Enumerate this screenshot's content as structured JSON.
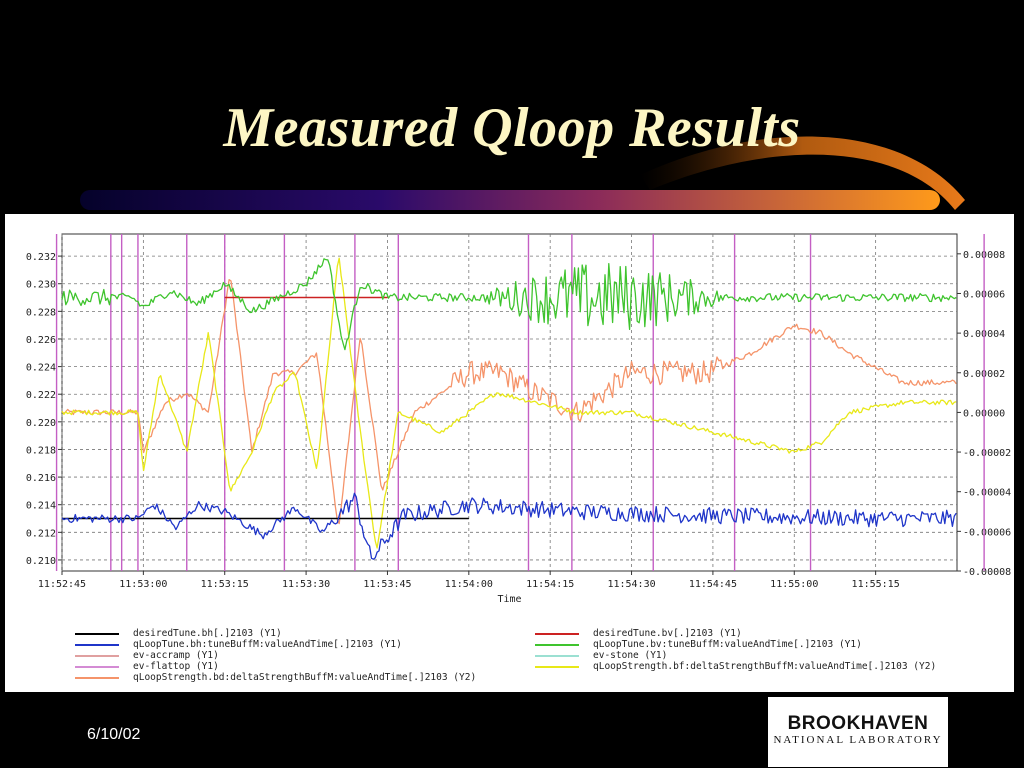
{
  "slide": {
    "title": "Measured Qloop Results",
    "date": "6/10/02",
    "logo_line1": "BROOKHAVEN",
    "logo_line2": "NATIONAL LABORATORY",
    "colors": {
      "background": "#000000",
      "title": "#fdf6c4",
      "bar_start": "#2a0a6a",
      "bar_end": "#ff9a1a"
    }
  },
  "chart_data": {
    "type": "line",
    "xlabel": "Time",
    "x_tick_labels": [
      "11:52:45",
      "11:53:00",
      "11:53:15",
      "11:53:30",
      "11:53:45",
      "11:54:00",
      "11:54:15",
      "11:54:30",
      "11:54:45",
      "11:55:00",
      "11:55:15"
    ],
    "xlim": [
      "11:52:45",
      "11:55:30"
    ],
    "y1_ticks": [
      "0.232",
      "0.230",
      "0.228",
      "0.226",
      "0.224",
      "0.222",
      "0.220",
      "0.218",
      "0.216",
      "0.214",
      "0.212",
      "0.210"
    ],
    "y1lim": [
      0.2092,
      0.2336
    ],
    "y2_ticks": [
      "0.00008",
      "0.00006",
      "0.00004",
      "0.00002",
      "0.00000",
      "-0.00002",
      "-0.00004",
      "-0.00006",
      "-0.00008"
    ],
    "y2lim": [
      -8e-05,
      9e-05
    ],
    "grid": true,
    "event_markers_seconds": [
      -1,
      9,
      11,
      14,
      23,
      30,
      41,
      54,
      62,
      86,
      94,
      109,
      124,
      138,
      170
    ],
    "series": [
      {
        "name": "desiredTune.bh[.]2103 (Y1)",
        "axis": "y1",
        "color": "#000000",
        "x": [
          "11:52:45",
          "11:53:00",
          "11:53:45",
          "11:54:00"
        ],
        "y": [
          0.213,
          0.213,
          0.213,
          0.213
        ]
      },
      {
        "name": "qLoopTune.bh:tuneBuffM:valueAndTime[.]2103 (Y1)",
        "axis": "y1",
        "color": "#1f35c9",
        "x": [
          "11:52:45",
          "11:52:59",
          "11:53:02",
          "11:53:06",
          "11:53:10",
          "11:53:15",
          "11:53:22",
          "11:53:28",
          "11:53:33",
          "11:53:39",
          "11:53:42",
          "11:53:48",
          "11:54:00",
          "11:54:20",
          "11:54:45",
          "11:55:15",
          "11:55:30"
        ],
        "y": [
          0.213,
          0.213,
          0.214,
          0.2123,
          0.214,
          0.2135,
          0.2118,
          0.2138,
          0.212,
          0.2145,
          0.21,
          0.2132,
          0.214,
          0.2135,
          0.2132,
          0.213,
          0.213
        ]
      },
      {
        "name": "ev-accramp (Y1)",
        "axis": "y1",
        "color": "#e0a0a0",
        "x": [],
        "y": []
      },
      {
        "name": "ev-flattop (Y1)",
        "axis": "y1",
        "color": "#d48bd4",
        "x": [],
        "y": []
      },
      {
        "name": "qLoopStrength.bd:deltaStrengthBuffM:valueAndTime[.]2103 (Y2)",
        "axis": "y2",
        "color": "#f5946a",
        "x": [
          "11:52:45",
          "11:52:59",
          "11:53:00",
          "11:53:04",
          "11:53:08",
          "11:53:12",
          "11:53:16",
          "11:53:20",
          "11:53:24",
          "11:53:28",
          "11:53:32",
          "11:53:36",
          "11:53:40",
          "11:53:44",
          "11:53:50",
          "11:54:00",
          "11:54:06",
          "11:54:12",
          "11:54:20",
          "11:54:30",
          "11:54:44",
          "11:54:52",
          "11:55:00",
          "11:55:05",
          "11:55:10",
          "11:55:20",
          "11:55:30"
        ],
        "y": [
          0.0,
          0.0,
          -2e-05,
          5e-06,
          1e-05,
          0.0,
          7e-05,
          -2e-05,
          2e-05,
          2e-05,
          3e-05,
          -6e-05,
          4e-05,
          -4e-05,
          0.0,
          2e-05,
          2e-05,
          1e-05,
          0.0,
          2e-05,
          2e-05,
          3e-05,
          4.4e-05,
          4e-05,
          3e-05,
          1.5e-05,
          1.5e-05
        ]
      },
      {
        "name": "desiredTune.bv[.]2103 (Y1)",
        "axis": "y1",
        "color": "#cc2222",
        "x": [
          "11:53:15",
          "11:53:45"
        ],
        "y": [
          0.229,
          0.229
        ]
      },
      {
        "name": "qLoopTune.bv:tuneBuffM:valueAndTime[.]2103 (Y1)",
        "axis": "y1",
        "color": "#3fc42e",
        "x": [
          "11:52:45",
          "11:52:58",
          "11:53:00",
          "11:53:05",
          "11:53:10",
          "11:53:15",
          "11:53:20",
          "11:53:25",
          "11:53:30",
          "11:53:34",
          "11:53:37",
          "11:53:40",
          "11:53:45",
          "11:54:00",
          "11:54:20",
          "11:54:40",
          "11:55:00",
          "11:55:30"
        ],
        "y": [
          0.229,
          0.229,
          0.2283,
          0.2295,
          0.2285,
          0.23,
          0.228,
          0.229,
          0.23,
          0.232,
          0.225,
          0.23,
          0.229,
          0.229,
          0.229,
          0.229,
          0.229,
          0.229
        ]
      },
      {
        "name": "ev-stone (Y1)",
        "axis": "y1",
        "color": "#9be0d2",
        "x": [],
        "y": []
      },
      {
        "name": "qLoopStrength.bf:deltaStrengthBuffM:valueAndTime[.]2103 (Y2)",
        "axis": "y2",
        "color": "#e8e818",
        "x": [
          "11:52:45",
          "11:52:59",
          "11:53:00",
          "11:53:03",
          "11:53:08",
          "11:53:12",
          "11:53:16",
          "11:53:20",
          "11:53:24",
          "11:53:28",
          "11:53:32",
          "11:53:36",
          "11:53:40",
          "11:53:43",
          "11:53:47",
          "11:53:55",
          "11:54:05",
          "11:54:20",
          "11:54:30",
          "11:54:45",
          "11:55:00",
          "11:55:05",
          "11:55:10",
          "11:55:20",
          "11:55:30"
        ],
        "y": [
          0.0,
          0.0,
          -3e-05,
          2e-05,
          -2e-05,
          4e-05,
          -4e-05,
          -2e-05,
          1e-05,
          2e-05,
          -3e-05,
          8e-05,
          -1e-05,
          -7e-05,
          0.0,
          -1e-05,
          1e-05,
          0.0,
          0.0,
          -1e-05,
          -2e-05,
          -1.5e-05,
          0.0,
          5e-06,
          5e-06
        ]
      }
    ]
  }
}
